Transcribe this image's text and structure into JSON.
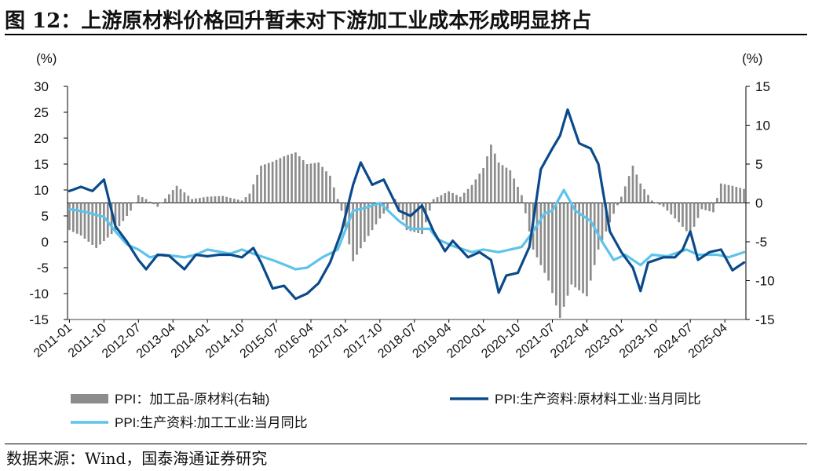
{
  "header": {
    "title": "图 12：上游原材料价格回升暂未对下游加工业成本形成明显挤占"
  },
  "footer": {
    "source": "数据来源：Wind，国泰海通证券研究"
  },
  "chart_data": {
    "type": "bar+line",
    "left_unit": "(%)",
    "right_unit": "(%)",
    "left_ylim": [
      -15,
      30
    ],
    "left_yticks": [
      -15,
      -10,
      -5,
      0,
      5,
      10,
      15,
      20,
      25,
      30
    ],
    "right_ylim": [
      -15,
      15
    ],
    "right_yticks": [
      -15,
      -10,
      -5,
      0,
      5,
      10,
      15
    ],
    "x_start": "2011-01",
    "x_end": "2025-09",
    "x_ticks": [
      "2011-01",
      "2011-10",
      "2012-07",
      "2013-04",
      "2014-01",
      "2014-10",
      "2015-07",
      "2016-04",
      "2017-01",
      "2017-10",
      "2018-07",
      "2019-04",
      "2020-01",
      "2020-10",
      "2021-07",
      "2022-04",
      "2023-01",
      "2023-10",
      "2024-07",
      "2025-04"
    ],
    "legend": [
      {
        "label": "PPI：加工品-原材料(右轴)",
        "type": "bar",
        "color": "#8c8c8c"
      },
      {
        "label": "PPI:生产资料:原材料工业:当月同比",
        "type": "line",
        "color": "#0b4a8a"
      },
      {
        "label": "PPI:生产资料:加工工业:当月同比",
        "type": "line",
        "color": "#5ec3ea"
      }
    ],
    "series": [
      {
        "name": "PPI：加工品-原材料(右轴)",
        "axis": "right",
        "color": "#8c8c8c",
        "keypoints": [
          [
            "2011-01",
            -3.5
          ],
          [
            "2011-04",
            -4.2
          ],
          [
            "2011-08",
            -5.8
          ],
          [
            "2011-12",
            -4
          ],
          [
            "2012-02",
            -3
          ],
          [
            "2012-05",
            -1
          ],
          [
            "2012-07",
            1
          ],
          [
            "2012-09",
            0.5
          ],
          [
            "2012-12",
            -0.5
          ],
          [
            "2013-05",
            2.2
          ],
          [
            "2013-09",
            0.5
          ],
          [
            "2014-01",
            0.8
          ],
          [
            "2014-05",
            0.9
          ],
          [
            "2014-10",
            0.3
          ],
          [
            "2014-12",
            1.2
          ],
          [
            "2015-03",
            4.8
          ],
          [
            "2015-06",
            5.3
          ],
          [
            "2015-09",
            6
          ],
          [
            "2015-12",
            6.5
          ],
          [
            "2016-03",
            5
          ],
          [
            "2016-06",
            5.2
          ],
          [
            "2016-09",
            3.5
          ],
          [
            "2016-12",
            -1
          ],
          [
            "2017-03",
            -7.5
          ],
          [
            "2017-06",
            -5
          ],
          [
            "2017-10",
            -2
          ],
          [
            "2018-02",
            0.5
          ],
          [
            "2018-05",
            -3.5
          ],
          [
            "2018-09",
            -4
          ],
          [
            "2018-12",
            0.5
          ],
          [
            "2019-04",
            1.5
          ],
          [
            "2019-07",
            0.8
          ],
          [
            "2019-10",
            2.3
          ],
          [
            "2020-01",
            4.5
          ],
          [
            "2020-03",
            7.5
          ],
          [
            "2020-05",
            5.2
          ],
          [
            "2020-08",
            4.2
          ],
          [
            "2020-11",
            1
          ],
          [
            "2021-02",
            -6
          ],
          [
            "2021-06",
            -10
          ],
          [
            "2021-09",
            -14.8
          ],
          [
            "2021-12",
            -10.5
          ],
          [
            "2022-04",
            -12
          ],
          [
            "2022-07",
            -6
          ],
          [
            "2022-10",
            -2.5
          ],
          [
            "2023-01",
            0.8
          ],
          [
            "2023-04",
            4.8
          ],
          [
            "2023-06",
            2.5
          ],
          [
            "2023-09",
            0.3
          ],
          [
            "2023-12",
            -0.5
          ],
          [
            "2024-04",
            -2.5
          ],
          [
            "2024-07",
            -4.2
          ],
          [
            "2024-10",
            -0.8
          ],
          [
            "2025-01",
            -1.2
          ],
          [
            "2025-03",
            2.5
          ],
          [
            "2025-06",
            2.2
          ],
          [
            "2025-09",
            1.8
          ]
        ]
      },
      {
        "name": "PPI:生产资料:原材料工业:当月同比",
        "axis": "left",
        "color": "#0b4a8a",
        "keypoints": [
          [
            "2011-01",
            9.8
          ],
          [
            "2011-04",
            10.6
          ],
          [
            "2011-07",
            9.8
          ],
          [
            "2011-10",
            12
          ],
          [
            "2012-01",
            3
          ],
          [
            "2012-04",
            0
          ],
          [
            "2012-07",
            -3.5
          ],
          [
            "2012-09",
            -5.3
          ],
          [
            "2012-12",
            -2.5
          ],
          [
            "2013-03",
            -2.7
          ],
          [
            "2013-07",
            -5.3
          ],
          [
            "2013-10",
            -2.5
          ],
          [
            "2014-01",
            -2.8
          ],
          [
            "2014-04",
            -2.5
          ],
          [
            "2014-07",
            -2.5
          ],
          [
            "2014-10",
            -3
          ],
          [
            "2015-01",
            -1.2
          ],
          [
            "2015-03",
            -4
          ],
          [
            "2015-06",
            -9
          ],
          [
            "2015-09",
            -8.5
          ],
          [
            "2015-12",
            -11
          ],
          [
            "2016-03",
            -10
          ],
          [
            "2016-06",
            -8
          ],
          [
            "2016-09",
            -4
          ],
          [
            "2016-12",
            2
          ],
          [
            "2017-03",
            11
          ],
          [
            "2017-05",
            15.3
          ],
          [
            "2017-08",
            11
          ],
          [
            "2017-11",
            12
          ],
          [
            "2018-03",
            6
          ],
          [
            "2018-06",
            5
          ],
          [
            "2018-09",
            7
          ],
          [
            "2018-12",
            2
          ],
          [
            "2019-03",
            -1.8
          ],
          [
            "2019-05",
            0.2
          ],
          [
            "2019-09",
            -3
          ],
          [
            "2019-12",
            -2
          ],
          [
            "2020-03",
            -3.5
          ],
          [
            "2020-05",
            -9.8
          ],
          [
            "2020-07",
            -6.5
          ],
          [
            "2020-10",
            -6
          ],
          [
            "2021-01",
            -1
          ],
          [
            "2021-04",
            14
          ],
          [
            "2021-07",
            18
          ],
          [
            "2021-09",
            20.5
          ],
          [
            "2021-11",
            25.5
          ],
          [
            "2022-02",
            19
          ],
          [
            "2022-05",
            18
          ],
          [
            "2022-07",
            15
          ],
          [
            "2022-10",
            2
          ],
          [
            "2023-01",
            -2
          ],
          [
            "2023-04",
            -5
          ],
          [
            "2023-06",
            -9.5
          ],
          [
            "2023-08",
            -4
          ],
          [
            "2023-12",
            -3
          ],
          [
            "2024-03",
            -3
          ],
          [
            "2024-05",
            -1.5
          ],
          [
            "2024-07",
            2
          ],
          [
            "2024-09",
            -3.5
          ],
          [
            "2024-12",
            -2
          ],
          [
            "2025-03",
            -1.5
          ],
          [
            "2025-06",
            -5.5
          ],
          [
            "2025-09",
            -4
          ]
        ]
      },
      {
        "name": "PPI:生产资料:加工工业:当月同比",
        "axis": "left",
        "color": "#5ec3ea",
        "keypoints": [
          [
            "2011-01",
            6.3
          ],
          [
            "2011-05",
            5.8
          ],
          [
            "2011-10",
            4.8
          ],
          [
            "2012-01",
            2
          ],
          [
            "2012-04",
            -0.5
          ],
          [
            "2012-07",
            -1.5
          ],
          [
            "2012-10",
            -3
          ],
          [
            "2013-01",
            -2.5
          ],
          [
            "2013-04",
            -2.7
          ],
          [
            "2013-07",
            -3
          ],
          [
            "2013-10",
            -2.5
          ],
          [
            "2014-01",
            -1.5
          ],
          [
            "2014-07",
            -2.3
          ],
          [
            "2014-10",
            -1.5
          ],
          [
            "2015-01",
            -2.3
          ],
          [
            "2015-07",
            -3.8
          ],
          [
            "2015-12",
            -5.3
          ],
          [
            "2016-03",
            -5
          ],
          [
            "2016-07",
            -3
          ],
          [
            "2016-11",
            -1.5
          ],
          [
            "2017-03",
            6
          ],
          [
            "2017-06",
            6.5
          ],
          [
            "2017-10",
            7.5
          ],
          [
            "2018-03",
            4
          ],
          [
            "2018-06",
            2.5
          ],
          [
            "2018-11",
            2.5
          ],
          [
            "2019-01",
            0.5
          ],
          [
            "2019-05",
            -0.8
          ],
          [
            "2019-10",
            -2
          ],
          [
            "2020-01",
            -1.5
          ],
          [
            "2020-05",
            -2
          ],
          [
            "2020-08",
            -1.5
          ],
          [
            "2020-11",
            -1
          ],
          [
            "2021-02",
            2
          ],
          [
            "2021-05",
            5.5
          ],
          [
            "2021-07",
            6
          ],
          [
            "2021-10",
            10
          ],
          [
            "2022-01",
            6
          ],
          [
            "2022-05",
            4
          ],
          [
            "2022-08",
            0
          ],
          [
            "2022-11",
            -3.5
          ],
          [
            "2023-02",
            -2.5
          ],
          [
            "2023-06",
            -4.5
          ],
          [
            "2023-09",
            -2.5
          ],
          [
            "2024-01",
            -2.8
          ],
          [
            "2024-06",
            -1.5
          ],
          [
            "2024-09",
            -2.5
          ],
          [
            "2025-02",
            -2.5
          ],
          [
            "2025-05",
            -3
          ],
          [
            "2025-09",
            -2
          ]
        ]
      }
    ]
  }
}
